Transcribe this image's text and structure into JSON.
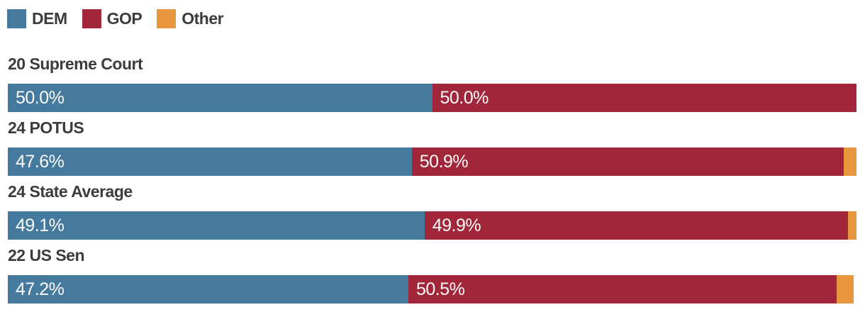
{
  "legend": {
    "items": [
      {
        "label": "DEM",
        "color": "#45799e"
      },
      {
        "label": "GOP",
        "color": "#a12639"
      },
      {
        "label": "Other",
        "color": "#e9973f"
      }
    ]
  },
  "colors": {
    "dem": "#45799e",
    "gop": "#a12639",
    "other": "#e9973f"
  },
  "chart_data": {
    "type": "bar",
    "orientation": "horizontal",
    "stacked": true,
    "unit": "percent",
    "xlim": [
      0,
      100
    ],
    "legend_position": "top-left",
    "series_names": [
      "DEM",
      "GOP",
      "Other"
    ],
    "rows": [
      {
        "title": "20 Supreme Court",
        "dem": 50.0,
        "gop": 50.0,
        "other": 0.0,
        "dem_label": "50.0%",
        "gop_label": "50.0%",
        "other_label": ""
      },
      {
        "title": "24 POTUS",
        "dem": 47.6,
        "gop": 50.9,
        "other": 1.5,
        "dem_label": "47.6%",
        "gop_label": "50.9%",
        "other_label": ""
      },
      {
        "title": "24 State Average",
        "dem": 49.1,
        "gop": 49.9,
        "other": 1.0,
        "dem_label": "49.1%",
        "gop_label": "49.9%",
        "other_label": ""
      },
      {
        "title": "22 US Sen",
        "dem": 47.2,
        "gop": 50.5,
        "other": 2.0,
        "dem_label": "47.2%",
        "gop_label": "50.5%",
        "other_label": ""
      }
    ]
  }
}
